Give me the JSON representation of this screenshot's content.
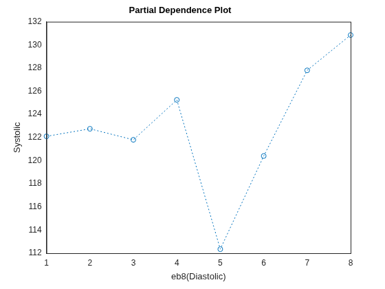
{
  "chart_data": {
    "type": "line",
    "title": "Partial Dependence Plot",
    "x_label": "eb8(Diastolic)",
    "y_label": "Systolic",
    "x": [
      1,
      2,
      3,
      4,
      5,
      6,
      7,
      8
    ],
    "values": [
      122.1,
      122.75,
      121.8,
      125.25,
      112.35,
      120.4,
      127.8,
      130.85
    ],
    "color": "#0072bd",
    "marker": "circle",
    "line_style": "dotted",
    "xlim": [
      1,
      8
    ],
    "xticks": [
      1,
      2,
      3,
      4,
      5,
      6,
      7,
      8
    ],
    "ylim": [
      112,
      132
    ],
    "yticks": [
      112,
      114,
      116,
      118,
      120,
      122,
      124,
      126,
      128,
      130,
      132
    ],
    "grid": false
  }
}
